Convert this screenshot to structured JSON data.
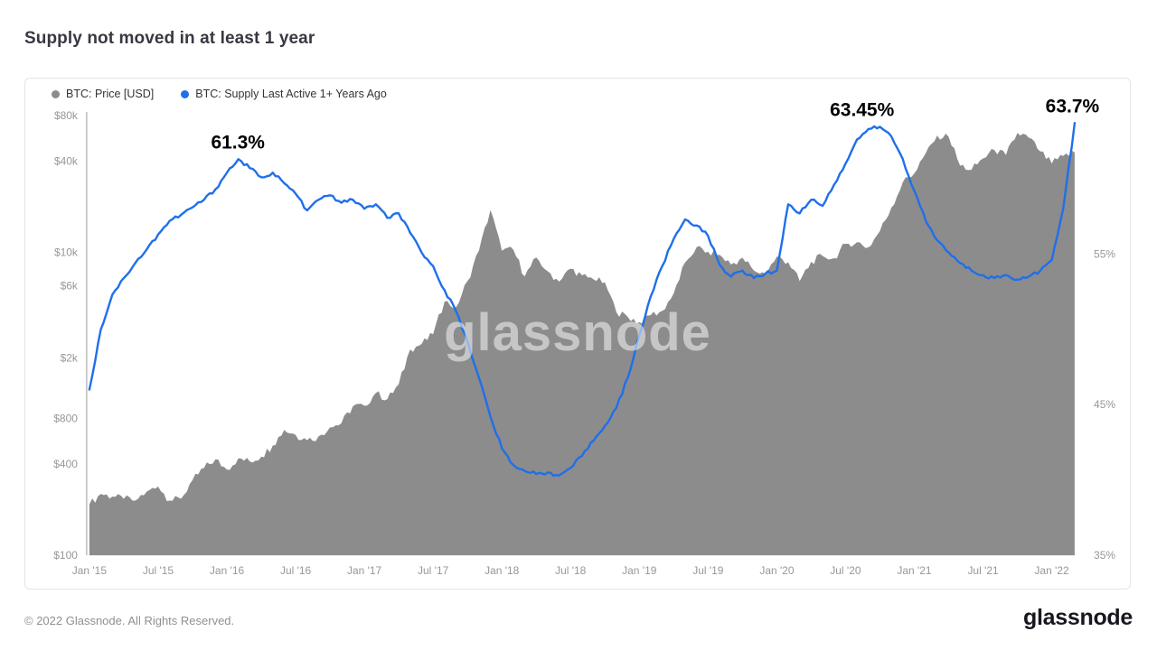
{
  "page": {
    "title": "Supply not moved in at least 1 year",
    "footer_copyright": "© 2022 Glassnode. All Rights Reserved.",
    "brand_logo_text": "glassnode",
    "watermark": "glassnode"
  },
  "legend": [
    {
      "label": "BTC: Price [USD]",
      "color": "#8c8c8c"
    },
    {
      "label": "BTC: Supply Last Active 1+ Years Ago",
      "color": "#1f6feb"
    }
  ],
  "chart_data": {
    "type": "area+line",
    "title": "Supply not moved in at least 1 year",
    "x_unit": "decimal_year",
    "x_range": [
      2014.98,
      2022.24
    ],
    "x_ticks": [
      {
        "x": 2015.0,
        "label": "Jan '15"
      },
      {
        "x": 2015.5,
        "label": "Jul '15"
      },
      {
        "x": 2016.0,
        "label": "Jan '16"
      },
      {
        "x": 2016.5,
        "label": "Jul '16"
      },
      {
        "x": 2017.0,
        "label": "Jan '17"
      },
      {
        "x": 2017.5,
        "label": "Jul '17"
      },
      {
        "x": 2018.0,
        "label": "Jan '18"
      },
      {
        "x": 2018.5,
        "label": "Jul '18"
      },
      {
        "x": 2019.0,
        "label": "Jan '19"
      },
      {
        "x": 2019.5,
        "label": "Jul '19"
      },
      {
        "x": 2020.0,
        "label": "Jan '20"
      },
      {
        "x": 2020.5,
        "label": "Jul '20"
      },
      {
        "x": 2021.0,
        "label": "Jan '21"
      },
      {
        "x": 2021.5,
        "label": "Jul '21"
      },
      {
        "x": 2022.0,
        "label": "Jan '22"
      }
    ],
    "y_left_axis": {
      "scale": "log",
      "range": [
        100,
        80000
      ],
      "unit": "USD",
      "ticks": [
        {
          "v": 80000,
          "label": "$80k"
        },
        {
          "v": 40000,
          "label": "$40k"
        },
        {
          "v": 10000,
          "label": "$10k"
        },
        {
          "v": 6000,
          "label": "$6k"
        },
        {
          "v": 2000,
          "label": "$2k"
        },
        {
          "v": 800,
          "label": "$800"
        },
        {
          "v": 400,
          "label": "$400"
        },
        {
          "v": 100,
          "label": "$100"
        }
      ]
    },
    "y_right_axis": {
      "scale": "linear",
      "range": [
        35,
        64.2
      ],
      "unit": "%",
      "ticks": [
        {
          "v": 55,
          "label": "55%"
        },
        {
          "v": 45,
          "label": "45%"
        },
        {
          "v": 35,
          "label": "35%"
        }
      ]
    },
    "series": [
      {
        "name": "BTC: Price [USD]",
        "axis": "left",
        "style": "area",
        "color": "#8c8c8c",
        "x_start": 2015.0,
        "x_interval": "1 month",
        "values": [
          217,
          254,
          244,
          236,
          230,
          263,
          284,
          230,
          236,
          314,
          377,
          430,
          368,
          437,
          416,
          448,
          531,
          672,
          624,
          575,
          609,
          700,
          745,
          963,
          970,
          1179,
          1071,
          1347,
          2286,
          2480,
          2875,
          4735,
          4338,
          6468,
          10233,
          19000,
          10221,
          10397,
          6938,
          9240,
          7494,
          6404,
          7780,
          7037,
          6625,
          6317,
          4017,
          3742,
          3457,
          3854,
          4105,
          5350,
          8574,
          10817,
          10085,
          9630,
          8308,
          9199,
          7569,
          7193,
          9350,
          8599,
          6438,
          8658,
          9461,
          9137,
          11351,
          11655,
          10778,
          13797,
          19698,
          29001,
          33114,
          45137,
          58918,
          57750,
          37332,
          35040,
          41626,
          47166,
          43790,
          61318,
          57005,
          46306,
          38483,
          43193,
          45538
        ]
      },
      {
        "name": "BTC: Supply Last Active 1+ Years Ago",
        "axis": "right",
        "style": "line",
        "color": "#1f6feb",
        "x_start": 2015.0,
        "x_interval": "1 month",
        "values": [
          46.0,
          50.0,
          52.3,
          53.4,
          54.4,
          55.3,
          56.3,
          57.2,
          57.6,
          58.1,
          58.6,
          59.3,
          60.4,
          61.3,
          60.7,
          60.1,
          60.4,
          59.7,
          59.0,
          57.9,
          58.6,
          58.9,
          58.4,
          58.6,
          58.0,
          58.3,
          57.4,
          57.7,
          56.4,
          55.1,
          54.2,
          52.6,
          51.2,
          49.2,
          46.8,
          44.2,
          42.1,
          41.0,
          40.6,
          40.4,
          40.5,
          40.3,
          40.8,
          41.6,
          42.6,
          43.6,
          44.8,
          46.8,
          49.6,
          52.2,
          54.2,
          56.0,
          57.3,
          56.9,
          56.2,
          54.3,
          53.5,
          53.9,
          53.4,
          53.7,
          53.9,
          58.3,
          57.7,
          58.6,
          58.2,
          59.6,
          61.0,
          62.6,
          63.3,
          63.45,
          62.8,
          61.3,
          59.2,
          57.2,
          55.9,
          55.1,
          54.4,
          53.9,
          53.6,
          53.4,
          53.6,
          53.3,
          53.5,
          53.9,
          54.6,
          58.0,
          63.7
        ]
      }
    ],
    "annotations": [
      {
        "text": "61.3%",
        "x": 2016.08,
        "y": 61.3
      },
      {
        "text": "63.45%",
        "x": 2020.62,
        "y": 63.45
      },
      {
        "text": "63.7%",
        "x": 2022.15,
        "y": 63.7
      }
    ],
    "grid": false,
    "legend_position": "top-left"
  }
}
